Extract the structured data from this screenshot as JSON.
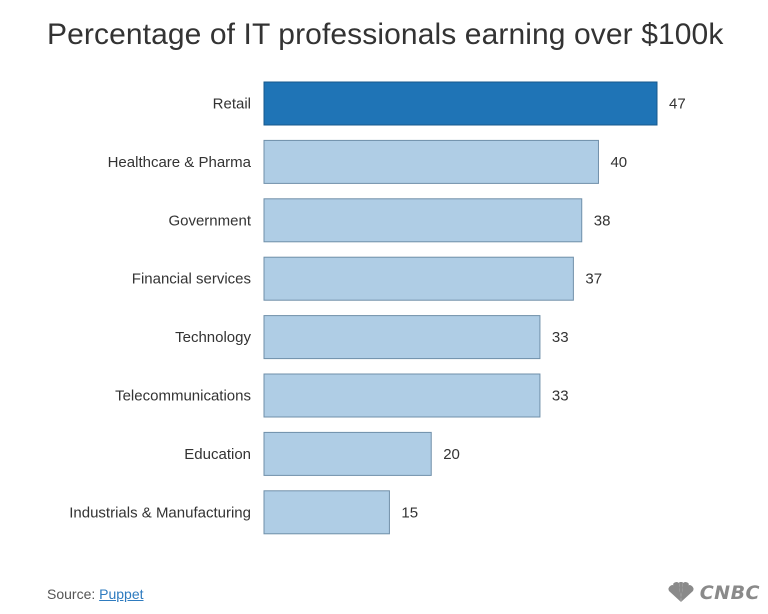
{
  "title": "Percentage of IT professionals earning over $100k",
  "source": {
    "prefix": "Source: ",
    "link_text": "Puppet"
  },
  "logo": {
    "text": "CNBC",
    "icon": "peacock-icon"
  },
  "colors": {
    "highlight": "#1f74b6",
    "bar": "#afcde5",
    "bar_border": "#6f8fa9",
    "label_text": "#333333"
  },
  "chart_data": {
    "type": "bar",
    "orientation": "horizontal",
    "categories": [
      "Retail",
      "Healthcare & Pharma",
      "Government",
      "Financial services",
      "Technology",
      "Telecommunications",
      "Education",
      "Industrials & Manufacturing"
    ],
    "values": [
      47,
      40,
      38,
      37,
      33,
      33,
      20,
      15
    ],
    "highlight_category": "Retail",
    "xlim": [
      0,
      47
    ],
    "grid": false,
    "legend": "none"
  }
}
